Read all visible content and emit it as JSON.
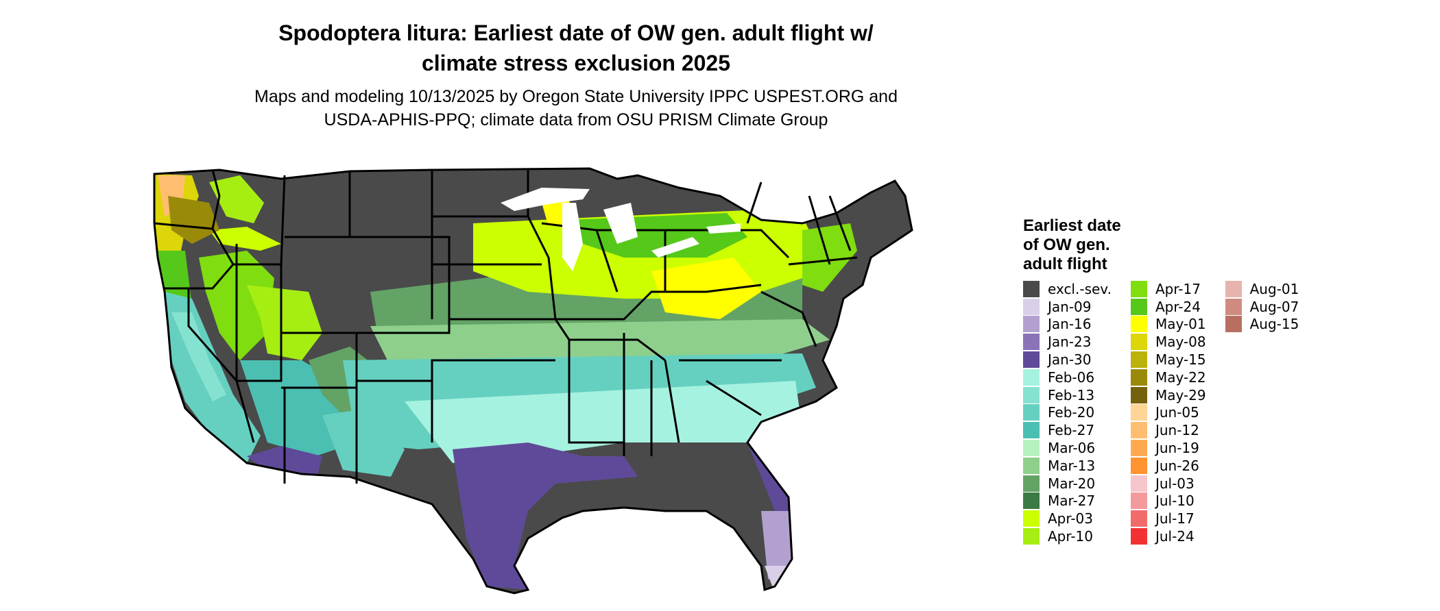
{
  "map": {
    "title_line1": "Spodoptera litura: Earliest date of OW gen. adult flight w/",
    "title_line2": "climate stress exclusion 2025",
    "subtitle_line1": "Maps and modeling 10/13/2025 by Oregon State University IPPC USPEST.ORG and",
    "subtitle_line2": "USDA-APHIS-PPQ; climate data from OSU PRISM Climate Group",
    "legend": {
      "title_line1": "Earliest date",
      "title_line2": "of OW gen.",
      "title_line3": "adult flight",
      "columns": [
        [
          {
            "label": "excl.-sev.",
            "color": "#4a4a4a"
          },
          {
            "label": "Jan-09",
            "color": "#d9cfe8"
          },
          {
            "label": "Jan-16",
            "color": "#b2a1cf"
          },
          {
            "label": "Jan-23",
            "color": "#8a73b7"
          },
          {
            "label": "Jan-30",
            "color": "#5f4a99"
          },
          {
            "label": "Feb-06",
            "color": "#a6f2e0"
          },
          {
            "label": "Feb-13",
            "color": "#86e2d0"
          },
          {
            "label": "Feb-20",
            "color": "#66d0c0"
          },
          {
            "label": "Feb-27",
            "color": "#4bbfb2"
          },
          {
            "label": "Mar-06",
            "color": "#b5f2c0"
          },
          {
            "label": "Mar-13",
            "color": "#8ecf8c"
          },
          {
            "label": "Mar-20",
            "color": "#63a366"
          },
          {
            "label": "Mar-27",
            "color": "#3c7a43"
          },
          {
            "label": "Apr-03",
            "color": "#ccff00"
          },
          {
            "label": "Apr-10",
            "color": "#a6ee12"
          }
        ],
        [
          {
            "label": "Apr-17",
            "color": "#7fdd10"
          },
          {
            "label": "Apr-24",
            "color": "#55c81a"
          },
          {
            "label": "May-01",
            "color": "#ffff00"
          },
          {
            "label": "May-08",
            "color": "#dcd60a"
          },
          {
            "label": "May-15",
            "color": "#bcb20a"
          },
          {
            "label": "May-22",
            "color": "#9a8a0a"
          },
          {
            "label": "May-29",
            "color": "#75610c"
          },
          {
            "label": "Jun-05",
            "color": "#ffd595"
          },
          {
            "label": "Jun-12",
            "color": "#ffbe6f"
          },
          {
            "label": "Jun-19",
            "color": "#ffaa50"
          },
          {
            "label": "Jun-26",
            "color": "#ff9430"
          },
          {
            "label": "Jul-03",
            "color": "#f5c6cc"
          },
          {
            "label": "Jul-10",
            "color": "#f39a9c"
          },
          {
            "label": "Jul-17",
            "color": "#f26b6b"
          },
          {
            "label": "Jul-24",
            "color": "#f23232"
          }
        ],
        [
          {
            "label": "Aug-01",
            "color": "#e7b4ad"
          },
          {
            "label": "Aug-07",
            "color": "#cf8b80"
          },
          {
            "label": "Aug-15",
            "color": "#b86f62"
          }
        ]
      ]
    }
  }
}
